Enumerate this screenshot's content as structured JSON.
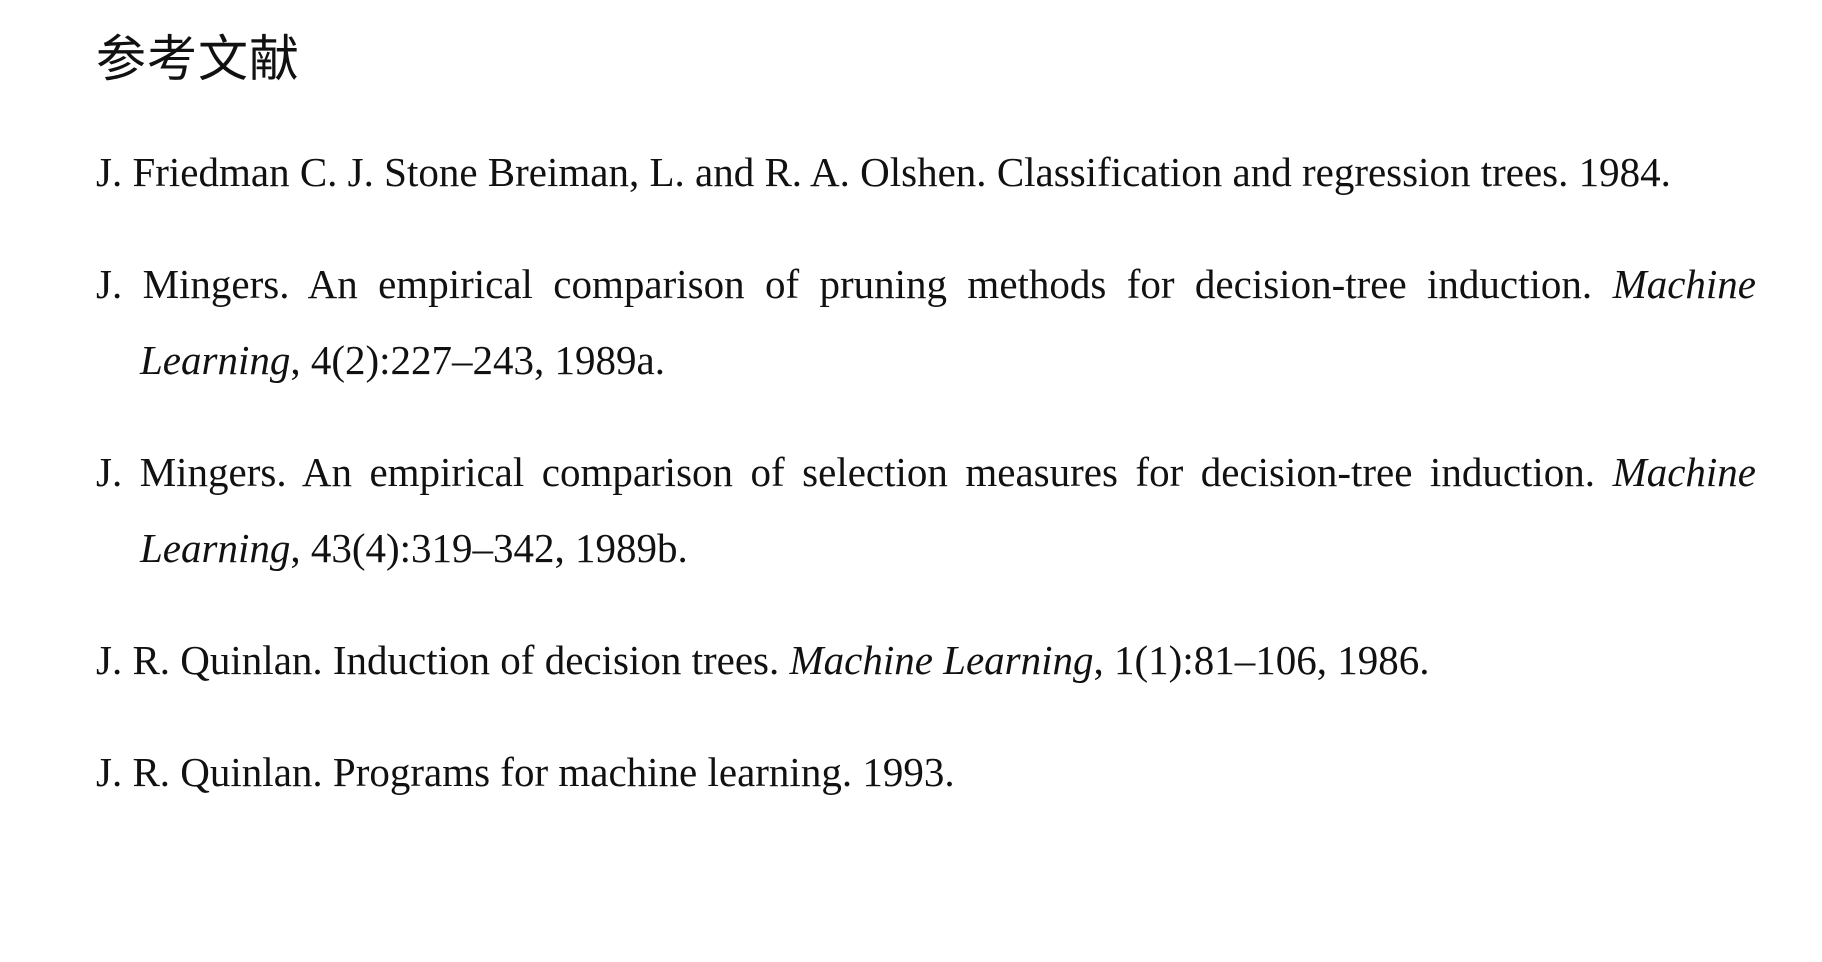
{
  "section": {
    "title": "参考文献"
  },
  "references": [
    {
      "authors": "J. Friedman C. J. Stone Breiman, L. and R. A. Olshen.",
      "title": "Classification and regression trees.",
      "journal": "",
      "details": "1984."
    },
    {
      "authors": "J. Mingers.",
      "title": "An empirical comparison of pruning methods for decision-tree induction.",
      "journal": "Machine Learning",
      "details": ", 4(2):227–243, 1989a."
    },
    {
      "authors": "J. Mingers.",
      "title": "An empirical comparison of selection measures for decision-tree induction.",
      "journal": "Machine Learning",
      "details": ", 43(4):319–342, 1989b."
    },
    {
      "authors": "J. R. Quinlan.",
      "title": "Induction of decision trees.",
      "journal": "Machine Learning",
      "details": ", 1(1):81–106, 1986."
    },
    {
      "authors": "J. R. Quinlan.",
      "title": "Programs for machine learning.",
      "journal": "",
      "details": "1993."
    }
  ]
}
